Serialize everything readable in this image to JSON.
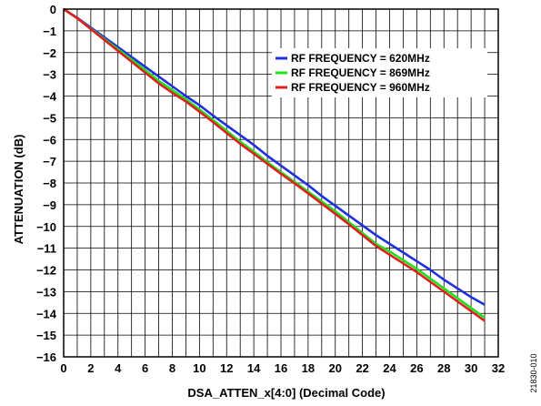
{
  "figure_id": "21830-010",
  "chart_data": {
    "type": "line",
    "xlabel": "DSA_ATTEN_x[4:0] (Decimal Code)",
    "ylabel": "ATTENUATION (dB)",
    "xlim": [
      0,
      32
    ],
    "ylim": [
      -16,
      0
    ],
    "grid": true,
    "x_minor_step": 1,
    "x_tick_labels": [
      "0",
      "2",
      "4",
      "6",
      "8",
      "10",
      "12",
      "14",
      "16",
      "18",
      "20",
      "22",
      "24",
      "26",
      "28",
      "30",
      "32"
    ],
    "y_tick_labels": [
      "0",
      "−1",
      "−2",
      "−3",
      "−4",
      "−5",
      "−6",
      "−7",
      "−8",
      "−9",
      "−10",
      "−11",
      "−12",
      "−13",
      "−14",
      "−15",
      "−16"
    ],
    "legend_position": "top-right",
    "x": [
      0,
      1,
      2,
      3,
      4,
      5,
      6,
      7,
      8,
      9,
      10,
      11,
      12,
      13,
      14,
      15,
      16,
      17,
      18,
      19,
      20,
      21,
      22,
      23,
      24,
      25,
      26,
      27,
      28,
      29,
      30,
      31
    ],
    "series": [
      {
        "name": "RF FREQUENCY = 620MHz",
        "color": "#1f2fe0",
        "values": [
          0,
          -0.4,
          -0.85,
          -1.3,
          -1.75,
          -2.2,
          -2.65,
          -3.1,
          -3.55,
          -4.0,
          -4.42,
          -4.9,
          -5.35,
          -5.8,
          -6.25,
          -6.75,
          -7.2,
          -7.65,
          -8.1,
          -8.6,
          -9.05,
          -9.5,
          -9.95,
          -10.4,
          -10.8,
          -11.2,
          -11.6,
          -12.0,
          -12.45,
          -12.85,
          -13.25,
          -13.6
        ]
      },
      {
        "name": "RF FREQUENCY = 869MHz",
        "color": "#22e01f",
        "values": [
          0,
          -0.42,
          -0.9,
          -1.38,
          -1.85,
          -2.32,
          -2.8,
          -3.3,
          -3.72,
          -4.15,
          -4.62,
          -5.1,
          -5.6,
          -6.1,
          -6.55,
          -7.05,
          -7.5,
          -7.95,
          -8.4,
          -8.85,
          -9.3,
          -9.8,
          -10.3,
          -10.8,
          -11.15,
          -11.55,
          -11.95,
          -12.4,
          -12.85,
          -13.3,
          -13.75,
          -14.2
        ]
      },
      {
        "name": "RF FREQUENCY = 960MHz",
        "color": "#e01f1f",
        "values": [
          0,
          -0.42,
          -0.92,
          -1.42,
          -1.92,
          -2.42,
          -2.92,
          -3.42,
          -3.85,
          -4.25,
          -4.72,
          -5.2,
          -5.7,
          -6.2,
          -6.65,
          -7.12,
          -7.58,
          -8.02,
          -8.48,
          -8.95,
          -9.42,
          -9.9,
          -10.4,
          -10.9,
          -11.3,
          -11.7,
          -12.1,
          -12.55,
          -13.0,
          -13.45,
          -13.9,
          -14.35
        ]
      }
    ]
  }
}
